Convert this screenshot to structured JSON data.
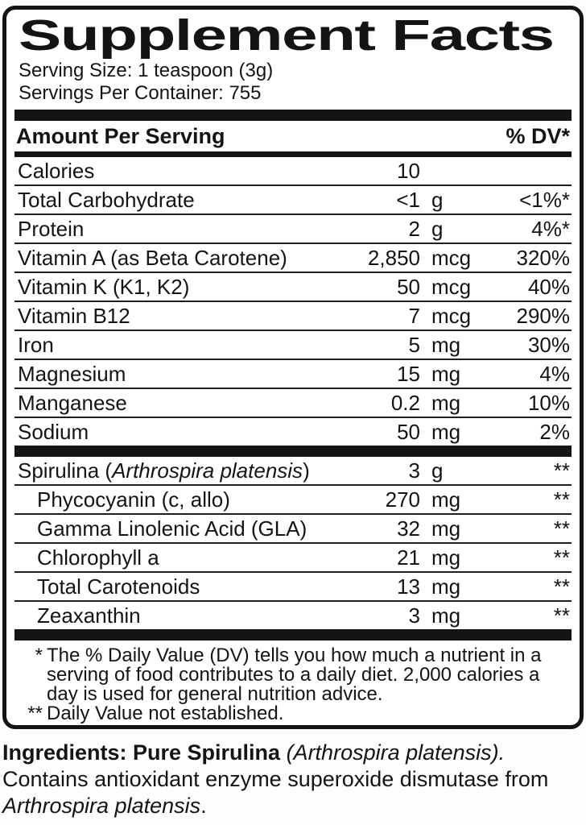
{
  "label": {
    "title": "Supplement Facts",
    "serving_size": "Serving Size: 1 teaspoon (3g)",
    "servings_per_container": "Servings Per Container: 755",
    "header": {
      "amount_per_serving": "Amount Per Serving",
      "percent_dv": "% DV*"
    },
    "colors": {
      "ink": "#141414",
      "background": "#ffffff"
    },
    "main_rows": [
      {
        "name": "Calories",
        "amount": "10",
        "unit": "",
        "dv": ""
      },
      {
        "name": "Total Carbohydrate",
        "amount": "<1",
        "unit": "g",
        "dv": "<1%*"
      },
      {
        "name": "Protein",
        "amount": "2",
        "unit": "g",
        "dv": "4%*"
      },
      {
        "name": "Vitamin A (as Beta Carotene)",
        "amount": "2,850",
        "unit": "mcg",
        "dv": "320%"
      },
      {
        "name": "Vitamin K (K1, K2)",
        "amount": "50",
        "unit": "mcg",
        "dv": "40%"
      },
      {
        "name": "Vitamin B12",
        "amount": "7",
        "unit": "mcg",
        "dv": "290%"
      },
      {
        "name": "Iron",
        "amount": "5",
        "unit": "mg",
        "dv": "30%"
      },
      {
        "name": "Magnesium",
        "amount": "15",
        "unit": "mg",
        "dv": "4%"
      },
      {
        "name": "Manganese",
        "amount": "0.2",
        "unit": "mg",
        "dv": "10%"
      },
      {
        "name": "Sodium",
        "amount": "50",
        "unit": "mg",
        "dv": "2%"
      }
    ],
    "botanical_rows": [
      {
        "pre": "Spirulina (",
        "italic": "Arthrospira platensis",
        "post": ")",
        "amount": "3",
        "unit": "g",
        "dv": "**"
      },
      {
        "pre": "Phycocyanin (c, allo)",
        "italic": "",
        "post": "",
        "amount": "270",
        "unit": "mg",
        "dv": "**"
      },
      {
        "pre": "Gamma Linolenic Acid (GLA)",
        "italic": "",
        "post": "",
        "amount": "32",
        "unit": "mg",
        "dv": "**"
      },
      {
        "pre": "Chlorophyll a",
        "italic": "",
        "post": "",
        "amount": "21",
        "unit": "mg",
        "dv": "**"
      },
      {
        "pre": "Total Carotenoids",
        "italic": "",
        "post": "",
        "amount": "13",
        "unit": "mg",
        "dv": "**"
      },
      {
        "pre": "Zeaxanthin",
        "italic": "",
        "post": "",
        "amount": "3",
        "unit": "mg",
        "dv": "**"
      }
    ],
    "footnotes": [
      {
        "marker": "*",
        "text": "The % Daily Value (DV) tells you how much a nutrient in a serving of food contributes to a daily diet.  2,000 calories a day is used for general nutrition advice."
      },
      {
        "marker": "**",
        "text": "Daily Value not established."
      }
    ]
  },
  "ingredients": {
    "line1_bold": "Ingredients: Pure Spirulina",
    "line1_italic": " (Arthrospira platensis).",
    "line2": "Contains antioxidant enzyme superoxide dismutase from",
    "line3_italic": "Arthrospira platensis",
    "line3_end": "."
  }
}
